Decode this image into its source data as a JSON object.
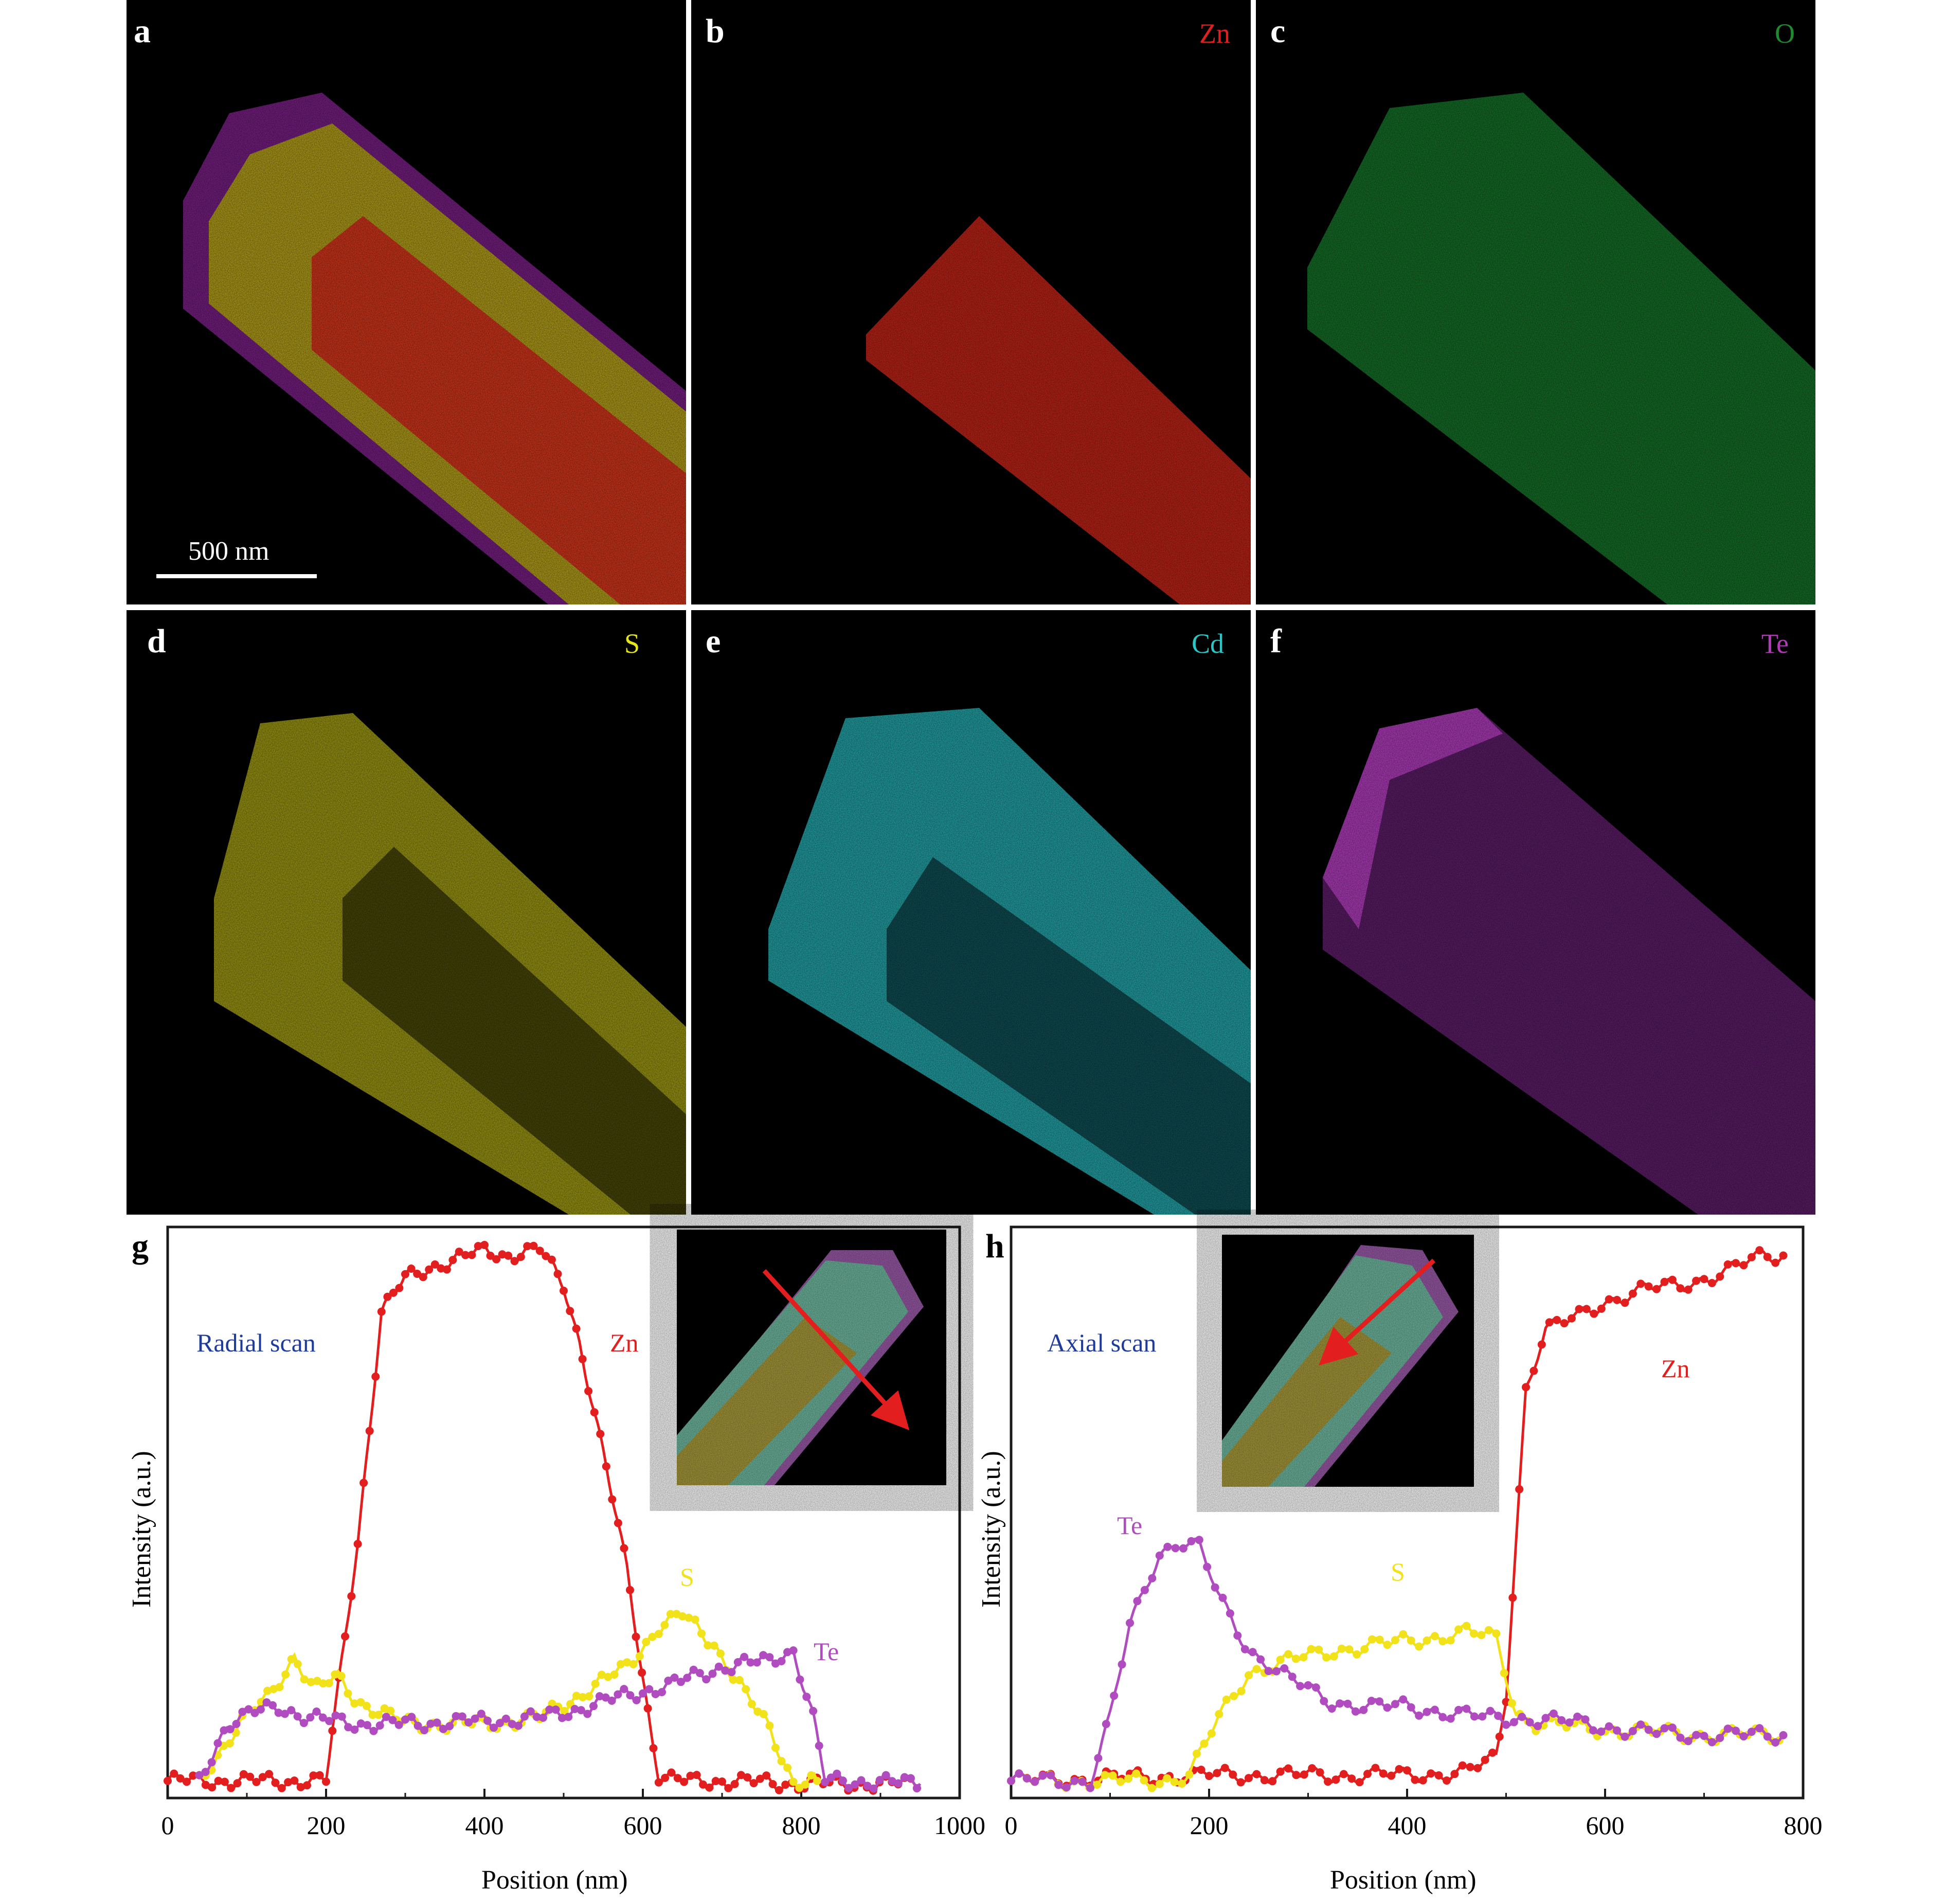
{
  "figure_panels": [
    {
      "id": "a",
      "letter": "a",
      "element": "",
      "color": "#ffffff",
      "scale_bar": "500 nm"
    },
    {
      "id": "b",
      "letter": "b",
      "element": "Zn",
      "color": "#e02020"
    },
    {
      "id": "c",
      "letter": "c",
      "element": "O",
      "color": "#1f8a2f"
    },
    {
      "id": "d",
      "letter": "d",
      "element": "S",
      "color": "#e6e619"
    },
    {
      "id": "e",
      "letter": "e",
      "element": "Cd",
      "color": "#2bc6c6"
    },
    {
      "id": "f",
      "letter": "f",
      "element": "Te",
      "color": "#b23ab8"
    }
  ],
  "colors": {
    "zn": "#e21e1e",
    "s": "#f2e21a",
    "te": "#b04cc0",
    "cd": "#2cc6c8",
    "o": "#1f8a2f",
    "axis": "#1a1a1a",
    "scan_text": "#1f3c9a"
  },
  "chart_data": [
    {
      "panel": "g",
      "type": "line",
      "title": "Radial scan",
      "xlabel": "Position (nm)",
      "ylabel": "Intensity (a.u.)",
      "xlim": [
        0,
        1000
      ],
      "ylim": [
        0,
        100
      ],
      "xticks": [
        0,
        200,
        400,
        600,
        800,
        1000
      ],
      "series": [
        {
          "name": "Zn",
          "color": "#e21e1e",
          "points": [
            [
              0,
              3
            ],
            [
              200,
              3
            ],
            [
              240,
              45
            ],
            [
              270,
              85
            ],
            [
              300,
              91
            ],
            [
              330,
              93
            ],
            [
              360,
              94
            ],
            [
              400,
              96
            ],
            [
              430,
              95
            ],
            [
              470,
              96
            ],
            [
              500,
              90
            ],
            [
              520,
              80
            ],
            [
              550,
              60
            ],
            [
              580,
              40
            ],
            [
              610,
              12
            ],
            [
              620,
              4
            ],
            [
              640,
              3
            ],
            [
              700,
              3
            ],
            [
              800,
              2.5
            ],
            [
              950,
              2.5
            ]
          ]
        },
        {
          "name": "S",
          "color": "#f2e21a",
          "points": [
            [
              40,
              3
            ],
            [
              90,
              13
            ],
            [
              130,
              18
            ],
            [
              160,
              25
            ],
            [
              185,
              19
            ],
            [
              215,
              21
            ],
            [
              240,
              17
            ],
            [
              270,
              15
            ],
            [
              300,
              13
            ],
            [
              400,
              13
            ],
            [
              470,
              14
            ],
            [
              520,
              18
            ],
            [
              580,
              23
            ],
            [
              620,
              30
            ],
            [
              650,
              32
            ],
            [
              690,
              27
            ],
            [
              730,
              18
            ],
            [
              760,
              12
            ],
            [
              790,
              3
            ],
            [
              820,
              3
            ]
          ]
        },
        {
          "name": "Te",
          "color": "#b04cc0",
          "points": [
            [
              40,
              3
            ],
            [
              75,
              13
            ],
            [
              110,
              15
            ],
            [
              140,
              16
            ],
            [
              180,
              14
            ],
            [
              240,
              13
            ],
            [
              300,
              13
            ],
            [
              400,
              13.5
            ],
            [
              470,
              14
            ],
            [
              530,
              16
            ],
            [
              580,
              18
            ],
            [
              640,
              20
            ],
            [
              700,
              23
            ],
            [
              760,
              24
            ],
            [
              790,
              26
            ],
            [
              815,
              14
            ],
            [
              830,
              3
            ],
            [
              860,
              3
            ],
            [
              950,
              2.5
            ]
          ]
        }
      ]
    },
    {
      "panel": "h",
      "type": "line",
      "title": "Axial scan",
      "xlabel": "Position (nm)",
      "ylabel": "Intensity (a.u.)",
      "xlim": [
        0,
        800
      ],
      "ylim": [
        0,
        100
      ],
      "xticks": [
        0,
        200,
        400,
        600,
        800
      ],
      "series": [
        {
          "name": "Zn",
          "color": "#e21e1e",
          "points": [
            [
              0,
              3
            ],
            [
              100,
              3.5
            ],
            [
              200,
              4
            ],
            [
              300,
              4
            ],
            [
              400,
              4
            ],
            [
              460,
              4.5
            ],
            [
              490,
              7
            ],
            [
              500,
              18
            ],
            [
              510,
              45
            ],
            [
              520,
              72
            ],
            [
              540,
              82
            ],
            [
              570,
              84
            ],
            [
              600,
              87
            ],
            [
              640,
              89
            ],
            [
              680,
              90
            ],
            [
              720,
              92
            ],
            [
              760,
              95
            ],
            [
              780,
              95
            ]
          ]
        },
        {
          "name": "S",
          "color": "#f2e21a",
          "points": [
            [
              0,
              3
            ],
            [
              150,
              3
            ],
            [
              180,
              4
            ],
            [
              210,
              14
            ],
            [
              240,
              22
            ],
            [
              280,
              24
            ],
            [
              330,
              26
            ],
            [
              380,
              27
            ],
            [
              420,
              28
            ],
            [
              460,
              29
            ],
            [
              490,
              28
            ],
            [
              510,
              15
            ],
            [
              530,
              13
            ],
            [
              600,
              12
            ],
            [
              700,
              11
            ],
            [
              780,
              11
            ]
          ]
        },
        {
          "name": "Te",
          "color": "#b04cc0",
          "points": [
            [
              0,
              3
            ],
            [
              80,
              3
            ],
            [
              100,
              14
            ],
            [
              120,
              30
            ],
            [
              150,
              43
            ],
            [
              170,
              45
            ],
            [
              190,
              44
            ],
            [
              210,
              35
            ],
            [
              240,
              26
            ],
            [
              280,
              21
            ],
            [
              320,
              17
            ],
            [
              360,
              16
            ],
            [
              400,
              16
            ],
            [
              440,
              15
            ],
            [
              480,
              14
            ],
            [
              520,
              14
            ],
            [
              580,
              13
            ],
            [
              640,
              11.5
            ],
            [
              700,
              11
            ],
            [
              780,
              11
            ]
          ]
        }
      ]
    }
  ]
}
